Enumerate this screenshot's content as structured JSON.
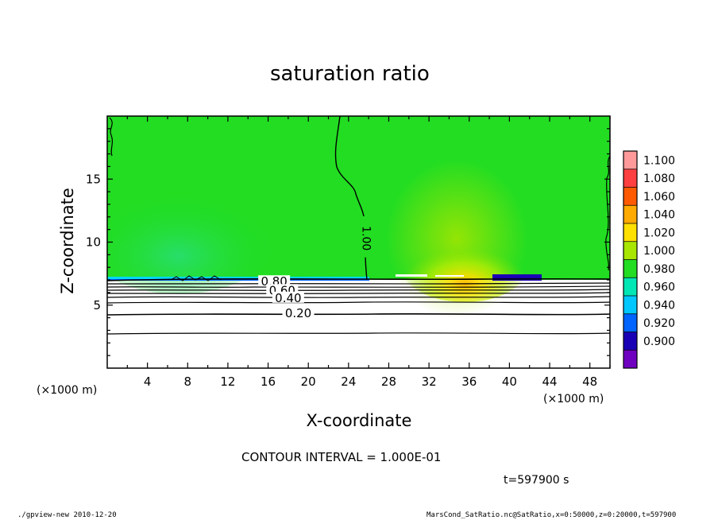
{
  "chart_data": {
    "type": "contour",
    "title": "saturation ratio",
    "xlabel": "X-coordinate",
    "ylabel": "Z-coordinate",
    "x_unit": "(×1000 m)",
    "y_unit": "(×1000 m)",
    "xlim": [
      0,
      50
    ],
    "ylim": [
      0,
      20
    ],
    "x_ticks": [
      "4",
      "8",
      "12",
      "16",
      "20",
      "24",
      "28",
      "32",
      "36",
      "40",
      "44",
      "48"
    ],
    "y_ticks": [
      "5",
      "10",
      "15"
    ],
    "colorbar": {
      "levels": [
        "1.100",
        "1.080",
        "1.060",
        "1.040",
        "1.020",
        "1.000",
        "0.980",
        "0.960",
        "0.940",
        "0.920",
        "0.900"
      ],
      "colors": [
        "#ff9a9a",
        "#ff4040",
        "#ff5a00",
        "#ffaa00",
        "#ffe000",
        "#a8e600",
        "#22dd22",
        "#00e6b4",
        "#00c8ff",
        "#0064ff",
        "#1a00b4",
        "#7000c0"
      ]
    },
    "contour_labels": [
      {
        "text": "1.00",
        "x": 25.8,
        "z": 10.3
      },
      {
        "text": "0.80",
        "x": 16.6,
        "z": 6.8
      },
      {
        "text": "0.60",
        "x": 17.4,
        "z": 6.1
      },
      {
        "text": "0.40",
        "x": 18.0,
        "z": 5.5
      },
      {
        "text": "0.20",
        "x": 19.0,
        "z": 4.3
      }
    ],
    "contour_interval": "CONTOUR INTERVAL = 1.000E-01",
    "time": "t=597900 s"
  },
  "footer": {
    "left": "./gpview-new  2010-12-20",
    "right": "MarsCond_SatRatio.nc@SatRatio,x=0:50000,z=0:20000,t=597900"
  }
}
